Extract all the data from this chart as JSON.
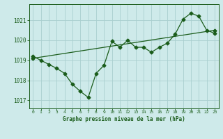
{
  "title": "Graphe pression niveau de la mer (hPa)",
  "bg_color": "#ceeaea",
  "line_color": "#1a5c1a",
  "grid_color": "#aacfcf",
  "x_min": -0.5,
  "x_max": 23.5,
  "y_min": 1016.6,
  "y_max": 1021.8,
  "yticks": [
    1017,
    1018,
    1019,
    1020,
    1021
  ],
  "xticks": [
    0,
    1,
    2,
    3,
    4,
    5,
    6,
    7,
    8,
    9,
    10,
    11,
    12,
    13,
    14,
    15,
    16,
    17,
    18,
    19,
    20,
    21,
    22,
    23
  ],
  "trend_x": [
    0,
    23
  ],
  "trend_y": [
    1019.1,
    1020.5
  ],
  "series_x": [
    0,
    1,
    2,
    3,
    4,
    5,
    6,
    7,
    8,
    9,
    10,
    11,
    12,
    13,
    14,
    15,
    16,
    17,
    18,
    19,
    20,
    21,
    22,
    23
  ],
  "series_y": [
    1019.2,
    1019.0,
    1018.8,
    1018.6,
    1018.35,
    1017.8,
    1017.45,
    1017.15,
    1018.35,
    1018.75,
    1019.95,
    1019.65,
    1020.0,
    1019.65,
    1019.65,
    1019.4,
    1019.65,
    1019.85,
    1020.3,
    1021.05,
    1021.35,
    1021.2,
    1020.5,
    1020.35
  ]
}
